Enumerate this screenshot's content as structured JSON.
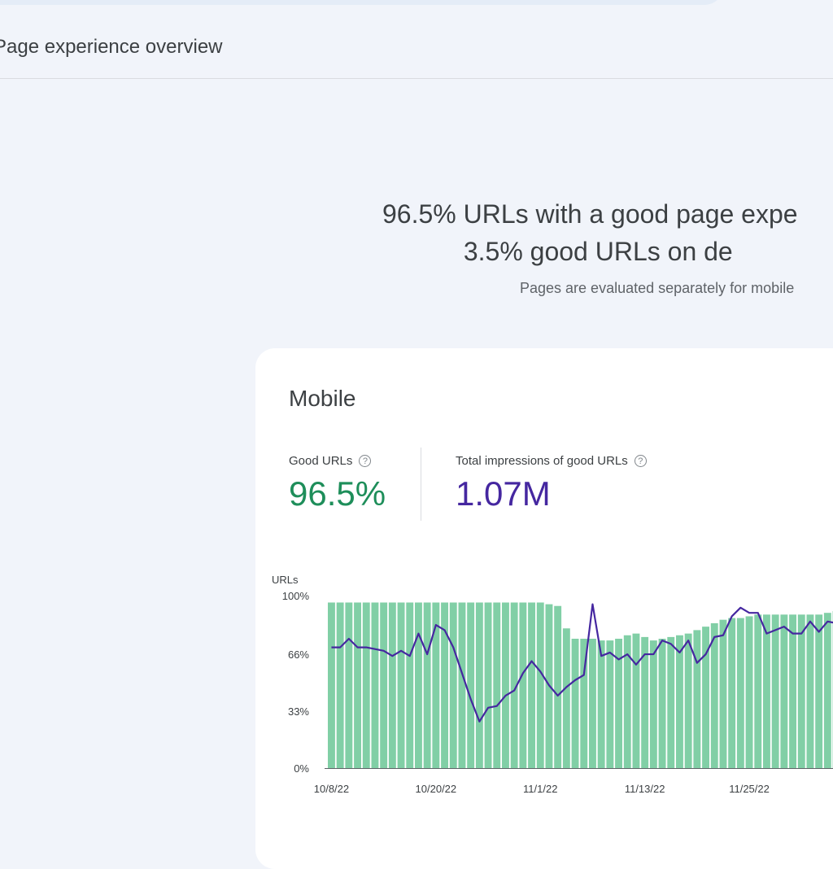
{
  "header": {
    "page_title": "Page experience overview"
  },
  "summary": {
    "headline_line1": "96.5% URLs with a good page expe",
    "headline_line2": "3.5% good URLs on de",
    "subtext": "Pages are evaluated separately for mobile"
  },
  "card": {
    "title": "Mobile",
    "good_urls": {
      "label": "Good URLs",
      "value": "96.5%"
    },
    "impressions": {
      "label": "Total impressions of good URLs",
      "value": "1.07M"
    }
  },
  "colors": {
    "bar": "#81cfa6",
    "line": "#4527a0",
    "good": "#1e8e5a"
  },
  "chart_data": {
    "type": "bar",
    "ylabel": "URLs",
    "ytick_labels": [
      "0%",
      "33%",
      "66%",
      "100%"
    ],
    "yticks": [
      0,
      33,
      66,
      100
    ],
    "ylim": [
      0,
      100
    ],
    "xtick_labels": [
      "10/8/22",
      "10/20/22",
      "11/1/22",
      "11/13/22",
      "11/25/22"
    ],
    "xtick_positions": [
      0,
      12,
      24,
      36,
      48
    ],
    "bars": [
      96,
      96,
      96,
      96,
      96,
      96,
      96,
      96,
      96,
      96,
      96,
      96,
      96,
      96,
      96,
      96,
      96,
      96,
      96,
      96,
      96,
      96,
      96,
      96,
      96,
      95,
      94,
      81,
      75,
      75,
      75,
      74,
      74,
      75,
      77,
      78,
      76,
      74,
      75,
      76,
      77,
      78,
      80,
      82,
      84,
      86,
      87,
      87,
      88,
      89,
      89,
      89,
      89,
      89,
      89,
      89,
      89,
      90,
      91,
      92,
      93,
      94,
      95,
      95,
      95,
      95,
      95,
      95,
      95,
      95,
      95,
      95,
      96
    ],
    "line": [
      70,
      70,
      75,
      70,
      70,
      69,
      68,
      65,
      68,
      65,
      78,
      66,
      83,
      80,
      70,
      55,
      40,
      27,
      35,
      36,
      42,
      45,
      55,
      62,
      56,
      48,
      42,
      47,
      51,
      54,
      95,
      65,
      67,
      63,
      66,
      60,
      66,
      66,
      74,
      72,
      67,
      74,
      61,
      66,
      76,
      77,
      88,
      93,
      90,
      90,
      78,
      80,
      82,
      78,
      78,
      85,
      79,
      85,
      84
    ]
  }
}
